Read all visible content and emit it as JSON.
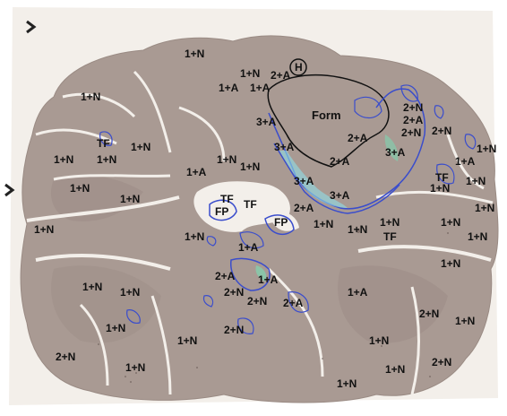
{
  "image": {
    "subject": "Stained brain tissue section (slide scan) with hand-drawn outlines and region annotations",
    "colors": {
      "tissue": "#a99a93",
      "tissue_dark": "#8f7f79",
      "slide_background": "#f3efea",
      "outline_blue": "#3a4dcc",
      "highlight_green": "#7fd6b0",
      "highlight_cyan": "#8fe0e8",
      "annotation_text": "#111111"
    }
  },
  "labels": [
    {
      "id": "l01",
      "text": "1+N"
    },
    {
      "id": "l02",
      "text": "1+N"
    },
    {
      "id": "l03",
      "text": "2+A"
    },
    {
      "id": "l04",
      "text": "H"
    },
    {
      "id": "l05",
      "text": "1+A"
    },
    {
      "id": "l06",
      "text": "1+A"
    },
    {
      "id": "l07",
      "text": "1+N"
    },
    {
      "id": "l08",
      "text": "Form"
    },
    {
      "id": "l09",
      "text": "3+A"
    },
    {
      "id": "l10",
      "text": "2+N"
    },
    {
      "id": "l11",
      "text": "2+A"
    },
    {
      "id": "l12",
      "text": "2+N"
    },
    {
      "id": "l13",
      "text": "2+N"
    },
    {
      "id": "l14",
      "text": "TF"
    },
    {
      "id": "l15",
      "text": "1+N"
    },
    {
      "id": "l16",
      "text": "1+N"
    },
    {
      "id": "l17",
      "text": "1+N"
    },
    {
      "id": "l18",
      "text": "3+A"
    },
    {
      "id": "l19",
      "text": "2+A"
    },
    {
      "id": "l20",
      "text": "3+A"
    },
    {
      "id": "l21",
      "text": "2+A"
    },
    {
      "id": "l22",
      "text": "1+N"
    },
    {
      "id": "l23",
      "text": "1+N"
    },
    {
      "id": "l24",
      "text": "1+A"
    },
    {
      "id": "l25",
      "text": "1+N"
    },
    {
      "id": "l26",
      "text": "1+N"
    },
    {
      "id": "l27",
      "text": "1+A"
    },
    {
      "id": "l28",
      "text": "3+A"
    },
    {
      "id": "l29",
      "text": "3+A"
    },
    {
      "id": "l30",
      "text": "TF"
    },
    {
      "id": "l31",
      "text": "1+N"
    },
    {
      "id": "l32",
      "text": "1+N"
    },
    {
      "id": "l33",
      "text": "1+N"
    },
    {
      "id": "l34",
      "text": "TF"
    },
    {
      "id": "l35",
      "text": "TF"
    },
    {
      "id": "l36",
      "text": "FP"
    },
    {
      "id": "l37",
      "text": "2+A"
    },
    {
      "id": "l38",
      "text": "FP"
    },
    {
      "id": "l39",
      "text": "1+N"
    },
    {
      "id": "l40",
      "text": "1+N"
    },
    {
      "id": "l41",
      "text": "1+N"
    },
    {
      "id": "l42",
      "text": "1+N"
    },
    {
      "id": "l43",
      "text": "1+N"
    },
    {
      "id": "l44",
      "text": "TF"
    },
    {
      "id": "l45",
      "text": "1+N"
    },
    {
      "id": "l46",
      "text": "1+N"
    },
    {
      "id": "l47",
      "text": "1+N"
    },
    {
      "id": "l48",
      "text": "1+A"
    },
    {
      "id": "l49",
      "text": "1+N"
    },
    {
      "id": "l50",
      "text": "2+A"
    },
    {
      "id": "l51",
      "text": "1+A"
    },
    {
      "id": "l52",
      "text": "1+N"
    },
    {
      "id": "l53",
      "text": "1+N"
    },
    {
      "id": "l54",
      "text": "2+N"
    },
    {
      "id": "l55",
      "text": "2+N"
    },
    {
      "id": "l56",
      "text": "2+A"
    },
    {
      "id": "l57",
      "text": "1+A"
    },
    {
      "id": "l58",
      "text": "2+N"
    },
    {
      "id": "l59",
      "text": "1+N"
    },
    {
      "id": "l60",
      "text": "1+N"
    },
    {
      "id": "l61",
      "text": "2+N"
    },
    {
      "id": "l62",
      "text": "1+N"
    },
    {
      "id": "l63",
      "text": "1+N"
    },
    {
      "id": "l64",
      "text": "2+N"
    },
    {
      "id": "l65",
      "text": "1+N"
    },
    {
      "id": "l66",
      "text": "1+N"
    },
    {
      "id": "l67",
      "text": "2+N"
    },
    {
      "id": "l68",
      "text": "1+N"
    }
  ]
}
